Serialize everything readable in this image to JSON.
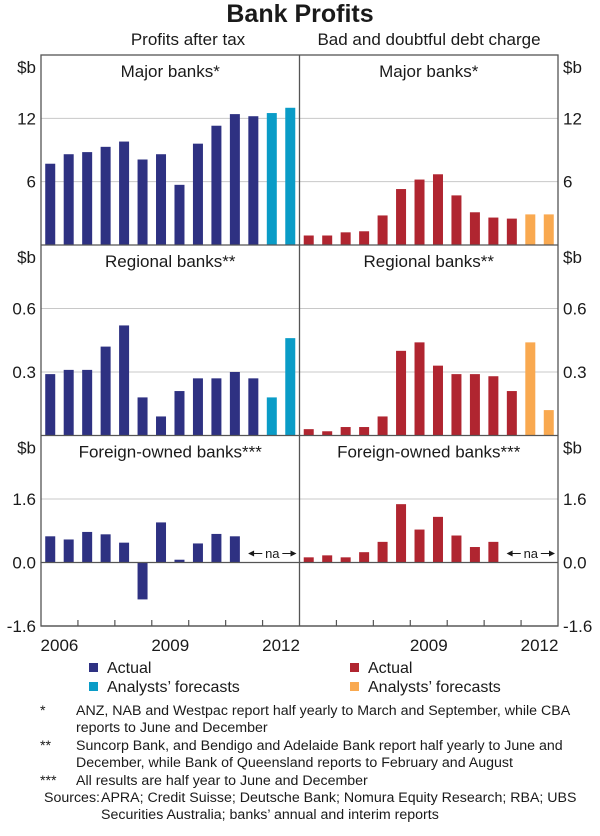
{
  "chart_data": {
    "type": "bar",
    "title": "Bank Profits",
    "columns": [
      {
        "key": "left",
        "subtitle": "Profits after tax"
      },
      {
        "key": "right",
        "subtitle": "Bad and doubtful debt charge"
      }
    ],
    "unit": "$b",
    "x_period": "half-yearly",
    "x_range": [
      "2006",
      "2012"
    ],
    "x_tick_labels": {
      "left": [
        "2006",
        "2009",
        "2012"
      ],
      "right": [
        "2009",
        "2012"
      ]
    },
    "colors": {
      "left_actual": "#2e3182",
      "left_forecast": "#0a9cc7",
      "right_actual": "#b02530",
      "right_forecast": "#f9a950"
    },
    "rows": [
      {
        "title": "Major banks*",
        "ylim": [
          0,
          18
        ],
        "yticks": [
          {
            "v": 12,
            "label": "12"
          },
          {
            "v": 6,
            "label": "6"
          }
        ],
        "left": {
          "actual": [
            7.7,
            8.6,
            8.8,
            9.3,
            9.8,
            8.1,
            8.6,
            5.7,
            9.6,
            11.3,
            12.4,
            12.2
          ],
          "forecast": [
            12.5,
            13.0
          ]
        },
        "right": {
          "actual": [
            0.9,
            0.9,
            1.2,
            1.3,
            2.8,
            5.3,
            6.2,
            6.7,
            4.7,
            3.1,
            2.6,
            2.5
          ],
          "forecast": [
            2.9,
            2.9
          ]
        }
      },
      {
        "title": "Regional banks**",
        "ylim": [
          0,
          0.9
        ],
        "yticks": [
          {
            "v": 0.6,
            "label": "0.6"
          },
          {
            "v": 0.3,
            "label": "0.3"
          }
        ],
        "left": {
          "actual": [
            0.29,
            0.31,
            0.31,
            0.42,
            0.52,
            0.18,
            0.09,
            0.21,
            0.27,
            0.27,
            0.3,
            0.27
          ],
          "forecast": [
            0.18,
            0.46
          ]
        },
        "right": {
          "actual": [
            0.03,
            0.02,
            0.04,
            0.04,
            0.09,
            0.4,
            0.44,
            0.33,
            0.29,
            0.29,
            0.28,
            0.21
          ],
          "forecast": [
            0.44,
            0.12
          ]
        }
      },
      {
        "title": "Foreign-owned banks***",
        "ylim": [
          -1.6,
          3.2
        ],
        "yticks": [
          {
            "v": 1.6,
            "label": "1.6"
          },
          {
            "v": 0.0,
            "label": "0.0"
          },
          {
            "v": -1.6,
            "label": "-1.6"
          }
        ],
        "na_label": "na",
        "left": {
          "actual": [
            0.66,
            0.58,
            0.77,
            0.71,
            0.5,
            -0.93,
            1.01,
            0.07,
            0.48,
            0.72,
            0.66
          ],
          "forecast": []
        },
        "right": {
          "actual": [
            0.13,
            0.18,
            0.13,
            0.26,
            0.52,
            1.47,
            0.83,
            1.15,
            0.68,
            0.39,
            0.52
          ],
          "forecast": []
        }
      }
    ],
    "legend": {
      "left": [
        {
          "label": "Actual",
          "color_key": "left_actual"
        },
        {
          "label": "Analysts’ forecasts",
          "color_key": "left_forecast"
        }
      ],
      "right": [
        {
          "label": "Actual",
          "color_key": "right_actual"
        },
        {
          "label": "Analysts’ forecasts",
          "color_key": "right_forecast"
        }
      ],
      "placement": "bottom"
    }
  },
  "notes": [
    {
      "mark": "*",
      "text": "ANZ, NAB and Westpac report half yearly to March and September, while CBA reports to June and December"
    },
    {
      "mark": "**",
      "text": "Suncorp Bank, and Bendigo and Adelaide Bank report half yearly to June and December, while Bank of Queensland reports to February and August"
    },
    {
      "mark": "***",
      "text": "All results are half year to June and December"
    }
  ],
  "sources": {
    "label": "Sources:",
    "text": "APRA; Credit Suisse; Deutsche Bank; Nomura Equity Research; RBA; UBS Securities Australia; banks’ annual and interim reports"
  }
}
